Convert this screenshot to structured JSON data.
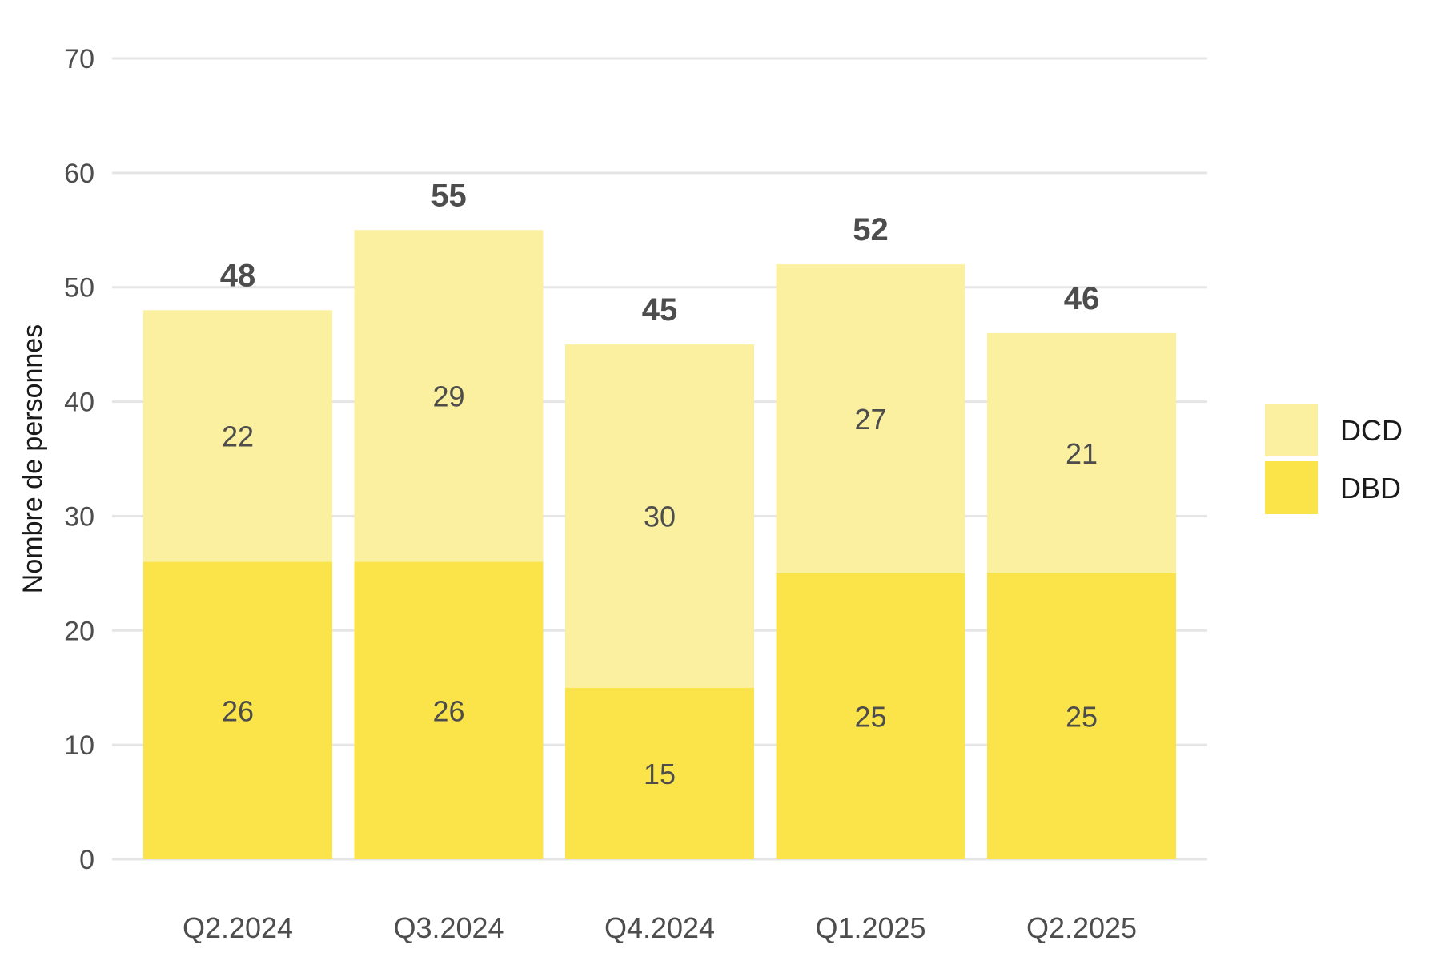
{
  "chart_data": {
    "type": "bar",
    "stacked": true,
    "categories": [
      "Q2.2024",
      "Q3.2024",
      "Q4.2024",
      "Q1.2025",
      "Q2.2025"
    ],
    "series": [
      {
        "name": "DBD",
        "values": [
          26,
          26,
          15,
          25,
          25
        ],
        "color": "#fae44a"
      },
      {
        "name": "DCD",
        "values": [
          22,
          29,
          30,
          27,
          21
        ],
        "color": "#fbf09f"
      }
    ],
    "totals": [
      48,
      55,
      45,
      52,
      46
    ],
    "ylabel": "Nombre de personnes",
    "xlabel": "",
    "ylim": [
      0,
      70
    ],
    "yticks": [
      0,
      10,
      20,
      30,
      40,
      50,
      60,
      70
    ],
    "grid": true,
    "legend_position": "right",
    "legend_order": [
      "DCD",
      "DBD"
    ]
  }
}
